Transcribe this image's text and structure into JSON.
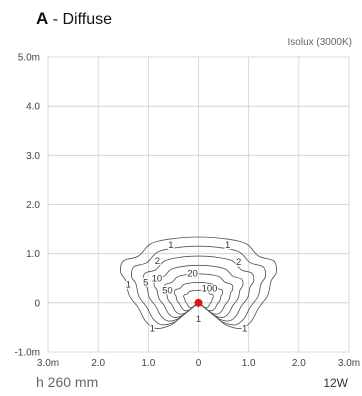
{
  "header": {
    "letter": "A",
    "name": " - Diffuse",
    "subtitle": "Isolux (3000K)"
  },
  "footer": {
    "mounting_height": "h 260 mm",
    "power": "12W"
  },
  "chart_data": {
    "type": "contour",
    "title": "A - Diffuse",
    "subtitle": "Isolux (3000K)",
    "xlim": [
      -3,
      3
    ],
    "ylim": [
      -1,
      5
    ],
    "x_ticks": [
      {
        "value": -3,
        "label": "3.0m"
      },
      {
        "value": -2,
        "label": "2.0"
      },
      {
        "value": -1,
        "label": "1.0"
      },
      {
        "value": 0,
        "label": "0"
      },
      {
        "value": 1,
        "label": "1.0"
      },
      {
        "value": 2,
        "label": "2.0"
      },
      {
        "value": 3,
        "label": "3.0m"
      }
    ],
    "y_ticks": [
      {
        "value": 5,
        "label": "5.0m"
      },
      {
        "value": 4,
        "label": "4.0"
      },
      {
        "value": 3,
        "label": "3.0"
      },
      {
        "value": 2,
        "label": "2.0"
      },
      {
        "value": 1,
        "label": "1.0"
      },
      {
        "value": 0,
        "label": "0"
      },
      {
        "value": -1,
        "label": "-1.0m"
      }
    ],
    "grid": true,
    "source_point": {
      "x": 0,
      "y": 0,
      "color": "#e0141e"
    },
    "contours": [
      {
        "level": "1",
        "scale": 1.0
      },
      {
        "level": "2",
        "scale": 0.86
      },
      {
        "level": "5",
        "scale": 0.71
      },
      {
        "level": "10",
        "scale": 0.57
      },
      {
        "level": "20",
        "scale": 0.44
      },
      {
        "level": "50",
        "scale": 0.31
      },
      {
        "level": "100",
        "scale": 0.19
      }
    ],
    "outer_contour": [
      [
        -0.02,
        0
      ],
      [
        -0.15,
        -0.12
      ],
      [
        -0.35,
        -0.28
      ],
      [
        -0.55,
        -0.45
      ],
      [
        -0.85,
        -0.52
      ],
      [
        -1.05,
        -0.38
      ],
      [
        -1.2,
        -0.1
      ],
      [
        -1.38,
        0.15
      ],
      [
        -1.45,
        0.45
      ],
      [
        -1.55,
        0.62
      ],
      [
        -1.5,
        0.85
      ],
      [
        -1.2,
        0.95
      ],
      [
        -0.95,
        1.2
      ],
      [
        -0.55,
        1.3
      ],
      [
        0.0,
        1.34
      ],
      [
        0.55,
        1.3
      ],
      [
        0.95,
        1.2
      ],
      [
        1.2,
        0.95
      ],
      [
        1.5,
        0.85
      ],
      [
        1.55,
        0.62
      ],
      [
        1.45,
        0.45
      ],
      [
        1.38,
        0.15
      ],
      [
        1.2,
        -0.1
      ],
      [
        1.05,
        -0.38
      ],
      [
        0.85,
        -0.52
      ],
      [
        0.55,
        -0.45
      ],
      [
        0.35,
        -0.28
      ],
      [
        0.15,
        -0.12
      ],
      [
        0.02,
        0
      ]
    ],
    "labels": [
      {
        "text": "1",
        "x": -0.55,
        "y": 1.18
      },
      {
        "text": "1",
        "x": 0.58,
        "y": 1.18
      },
      {
        "text": "2",
        "x": -0.82,
        "y": 0.86
      },
      {
        "text": "2",
        "x": 0.8,
        "y": 0.84
      },
      {
        "text": "1",
        "x": -1.4,
        "y": 0.38
      },
      {
        "text": "5",
        "x": -1.05,
        "y": 0.42
      },
      {
        "text": "10",
        "x": -0.83,
        "y": 0.5
      },
      {
        "text": "20",
        "x": -0.12,
        "y": 0.6
      },
      {
        "text": "50",
        "x": -0.62,
        "y": 0.26
      },
      {
        "text": "100",
        "x": 0.22,
        "y": 0.3
      },
      {
        "text": "1",
        "x": -0.92,
        "y": -0.52
      },
      {
        "text": "1",
        "x": 0.92,
        "y": -0.52
      },
      {
        "text": "1",
        "x": 0.0,
        "y": -0.32
      }
    ]
  }
}
